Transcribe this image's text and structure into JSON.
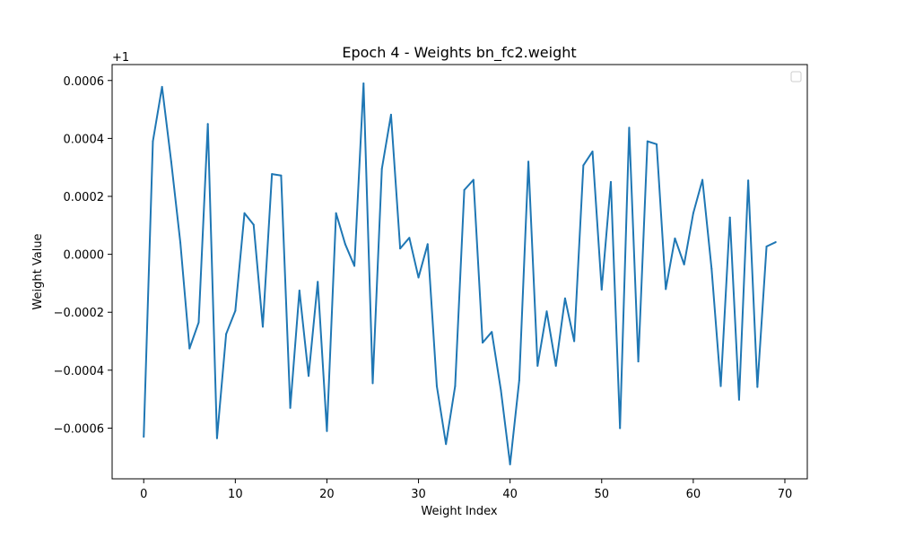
{
  "chart_data": {
    "type": "line",
    "title": "Epoch 4 - Weights bn_fc2.weight",
    "xlabel": "Weight Index",
    "ylabel": "Weight Value",
    "offset_label": "+1",
    "xlim": [
      -3.45,
      72.45
    ],
    "ylim": [
      -0.000775,
      0.000655
    ],
    "xticks": [
      0,
      10,
      20,
      30,
      40,
      50,
      60,
      70
    ],
    "yticks": [
      -0.0006,
      -0.0004,
      -0.0002,
      0.0,
      0.0002,
      0.0004,
      0.0006
    ],
    "ytick_labels": [
      "−0.0006",
      "−0.0004",
      "−0.0002",
      "0.0000",
      "0.0002",
      "0.0004",
      "0.0006"
    ],
    "grid": false,
    "legend": "top-right (empty)",
    "series_color": "#1f77b4",
    "series": [
      {
        "x": [
          0,
          1,
          2,
          3,
          4,
          5,
          6,
          7,
          8,
          9,
          10,
          11,
          12,
          13,
          14,
          15,
          16,
          17,
          18,
          19,
          20,
          21,
          22,
          23,
          24,
          25,
          26,
          27,
          28,
          29,
          30,
          31,
          32,
          33,
          34,
          35,
          36,
          37,
          38,
          39,
          40,
          41,
          42,
          43,
          44,
          45,
          46,
          47,
          48,
          49,
          50,
          51,
          52,
          53,
          54,
          55,
          56,
          57,
          58,
          59,
          60,
          61,
          62,
          63,
          64,
          65,
          66,
          67,
          68,
          69
        ],
        "values": [
          -0.00063,
          0.00039,
          0.000578,
          0.00032,
          4e-05,
          -0.000325,
          -0.000235,
          0.00045,
          -0.000635,
          -0.000275,
          -0.000195,
          0.000142,
          0.000102,
          -0.00025,
          0.000277,
          0.000272,
          -0.00053,
          -0.000125,
          -0.00042,
          -9.5e-05,
          -0.00061,
          0.000142,
          3.5e-05,
          -4e-05,
          0.00059,
          -0.000445,
          0.000295,
          0.000482,
          2e-05,
          5.7e-05,
          -8e-05,
          3.5e-05,
          -0.000455,
          -0.000655,
          -0.000455,
          0.000222,
          0.000257,
          -0.000305,
          -0.000268,
          -0.00047,
          -0.000725,
          -0.000435,
          0.00032,
          -0.000385,
          -0.000197,
          -0.000385,
          -0.000152,
          -0.0003,
          0.000307,
          0.000355,
          -0.000122,
          0.00025,
          -0.0006,
          0.000437,
          -0.00037,
          0.00039,
          0.00038,
          -0.00012,
          5.5e-05,
          -3.5e-05,
          0.000142,
          0.000257,
          -5e-05,
          -0.000455,
          0.000127,
          -0.000502,
          0.000255,
          -0.000458,
          2.7e-05,
          4.2e-05
        ]
      }
    ]
  }
}
